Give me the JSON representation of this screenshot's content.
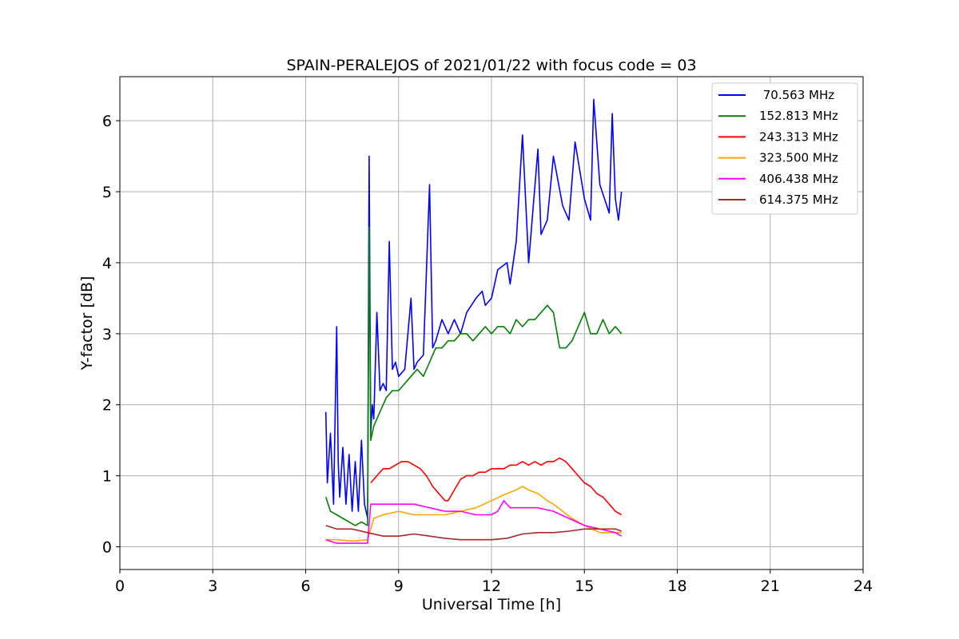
{
  "chart_data": {
    "type": "line",
    "title": "SPAIN-PERALEJOS of 2021/01/22 with focus code = 03",
    "xlabel": "Universal Time [h]",
    "ylabel": "Y-factor [dB]",
    "xlim": [
      0,
      24
    ],
    "ylim": [
      -0.32,
      6.62
    ],
    "xticks": [
      0,
      3,
      6,
      9,
      12,
      15,
      18,
      21,
      24
    ],
    "xtick_labels": [
      "0",
      "3",
      "6",
      "9",
      "12",
      "15",
      "18",
      "21",
      "24"
    ],
    "yticks": [
      0,
      1,
      2,
      3,
      4,
      5,
      6
    ],
    "ytick_labels": [
      "0",
      "1",
      "2",
      "3",
      "4",
      "5",
      "6"
    ],
    "grid": true,
    "legend_position": "top-right",
    "series": [
      {
        "name": " 70.563 MHz",
        "color": "#0000ff",
        "x": [
          6.65,
          6.7,
          6.8,
          6.9,
          7.0,
          7.05,
          7.1,
          7.2,
          7.3,
          7.4,
          7.5,
          7.6,
          7.7,
          7.8,
          7.9,
          8.0,
          8.05,
          8.1,
          8.15,
          8.2,
          8.3,
          8.4,
          8.5,
          8.6,
          8.7,
          8.8,
          8.9,
          9.0,
          9.2,
          9.4,
          9.5,
          9.6,
          9.8,
          10.0,
          10.1,
          10.2,
          10.4,
          10.6,
          10.8,
          11.0,
          11.2,
          11.5,
          11.7,
          11.8,
          12.0,
          12.2,
          12.5,
          12.6,
          12.8,
          13.0,
          13.2,
          13.5,
          13.6,
          13.8,
          14.0,
          14.3,
          14.5,
          14.7,
          15.0,
          15.2,
          15.3,
          15.5,
          15.8,
          15.9,
          16.0,
          16.1,
          16.2
        ],
        "y": [
          1.9,
          0.9,
          1.6,
          0.6,
          3.1,
          1.2,
          0.7,
          1.4,
          0.6,
          1.3,
          0.5,
          1.2,
          0.5,
          1.5,
          0.6,
          0.4,
          5.5,
          1.6,
          2.0,
          1.8,
          3.3,
          2.2,
          2.3,
          2.2,
          4.3,
          2.5,
          2.6,
          2.4,
          2.5,
          3.5,
          2.5,
          2.6,
          2.7,
          5.1,
          2.8,
          2.9,
          3.2,
          3.0,
          3.2,
          3.0,
          3.3,
          3.5,
          3.6,
          3.4,
          3.5,
          3.9,
          4.0,
          3.7,
          4.3,
          5.8,
          4.0,
          5.6,
          4.4,
          4.6,
          5.5,
          4.8,
          4.6,
          5.7,
          4.9,
          4.6,
          6.3,
          5.1,
          4.7,
          6.1,
          4.9,
          4.6,
          5.0
        ]
      },
      {
        "name": "152.813 MHz",
        "color": "#008000",
        "x": [
          6.65,
          6.8,
          7.0,
          7.2,
          7.4,
          7.6,
          7.8,
          8.0,
          8.05,
          8.1,
          8.2,
          8.4,
          8.6,
          8.8,
          9.0,
          9.2,
          9.4,
          9.6,
          9.8,
          10.0,
          10.2,
          10.4,
          10.6,
          10.8,
          11.0,
          11.2,
          11.4,
          11.6,
          11.8,
          12.0,
          12.2,
          12.4,
          12.6,
          12.8,
          13.0,
          13.2,
          13.4,
          13.6,
          13.8,
          14.0,
          14.2,
          14.4,
          14.6,
          14.8,
          15.0,
          15.2,
          15.4,
          15.6,
          15.8,
          16.0,
          16.2
        ],
        "y": [
          0.7,
          0.5,
          0.45,
          0.4,
          0.35,
          0.3,
          0.35,
          0.3,
          4.5,
          1.5,
          1.7,
          1.9,
          2.1,
          2.2,
          2.2,
          2.3,
          2.4,
          2.5,
          2.4,
          2.6,
          2.8,
          2.8,
          2.9,
          2.9,
          3.0,
          3.0,
          2.9,
          3.0,
          3.1,
          3.0,
          3.1,
          3.1,
          3.0,
          3.2,
          3.1,
          3.2,
          3.2,
          3.3,
          3.4,
          3.3,
          2.8,
          2.8,
          2.9,
          3.1,
          3.3,
          3.0,
          3.0,
          3.2,
          3.0,
          3.1,
          3.0
        ]
      },
      {
        "name": "243.313 MHz",
        "color": "#ff0000",
        "x": [
          8.1,
          8.3,
          8.5,
          8.7,
          8.9,
          9.1,
          9.3,
          9.5,
          9.7,
          9.9,
          10.1,
          10.3,
          10.5,
          10.6,
          10.8,
          11.0,
          11.2,
          11.4,
          11.6,
          11.8,
          12.0,
          12.2,
          12.4,
          12.6,
          12.8,
          13.0,
          13.2,
          13.4,
          13.6,
          13.8,
          14.0,
          14.2,
          14.4,
          14.6,
          14.8,
          15.0,
          15.2,
          15.4,
          15.6,
          15.8,
          16.0,
          16.2
        ],
        "y": [
          0.9,
          1.0,
          1.1,
          1.1,
          1.15,
          1.2,
          1.2,
          1.15,
          1.1,
          1.0,
          0.85,
          0.75,
          0.65,
          0.65,
          0.8,
          0.95,
          1.0,
          1.0,
          1.05,
          1.05,
          1.1,
          1.1,
          1.1,
          1.15,
          1.15,
          1.2,
          1.15,
          1.2,
          1.15,
          1.2,
          1.2,
          1.25,
          1.2,
          1.1,
          1.0,
          0.9,
          0.85,
          0.75,
          0.7,
          0.6,
          0.5,
          0.45
        ]
      },
      {
        "name": "323.500 MHz",
        "color": "#ffa500",
        "x": [
          6.65,
          7.0,
          7.5,
          8.0,
          8.2,
          8.5,
          9.0,
          9.5,
          10.0,
          10.5,
          11.0,
          11.5,
          12.0,
          12.5,
          12.8,
          13.0,
          13.2,
          13.5,
          13.8,
          14.0,
          14.3,
          14.6,
          15.0,
          15.5,
          16.0,
          16.2
        ],
        "y": [
          0.1,
          0.1,
          0.08,
          0.1,
          0.4,
          0.45,
          0.5,
          0.45,
          0.45,
          0.45,
          0.5,
          0.55,
          0.65,
          0.75,
          0.8,
          0.85,
          0.8,
          0.75,
          0.65,
          0.6,
          0.5,
          0.4,
          0.3,
          0.2,
          0.2,
          0.2
        ]
      },
      {
        "name": "406.438 MHz",
        "color": "#ff00ff",
        "x": [
          6.65,
          7.0,
          7.5,
          8.0,
          8.1,
          8.5,
          9.0,
          9.5,
          10.0,
          10.5,
          11.0,
          11.5,
          12.0,
          12.2,
          12.4,
          12.6,
          13.0,
          13.5,
          14.0,
          14.5,
          15.0,
          15.5,
          16.0,
          16.2
        ],
        "y": [
          0.1,
          0.05,
          0.05,
          0.05,
          0.6,
          0.6,
          0.6,
          0.6,
          0.55,
          0.5,
          0.5,
          0.45,
          0.45,
          0.5,
          0.65,
          0.55,
          0.55,
          0.55,
          0.5,
          0.4,
          0.3,
          0.25,
          0.2,
          0.15
        ]
      },
      {
        "name": "614.375 MHz",
        "color": "#a52a2a",
        "x": [
          6.65,
          7.0,
          7.5,
          8.0,
          8.5,
          9.0,
          9.5,
          10.0,
          10.5,
          11.0,
          11.5,
          12.0,
          12.5,
          13.0,
          13.5,
          14.0,
          14.5,
          15.0,
          15.5,
          16.0,
          16.2
        ],
        "y": [
          0.3,
          0.25,
          0.25,
          0.2,
          0.15,
          0.15,
          0.18,
          0.15,
          0.12,
          0.1,
          0.1,
          0.1,
          0.12,
          0.18,
          0.2,
          0.2,
          0.22,
          0.25,
          0.25,
          0.25,
          0.22
        ]
      }
    ]
  }
}
